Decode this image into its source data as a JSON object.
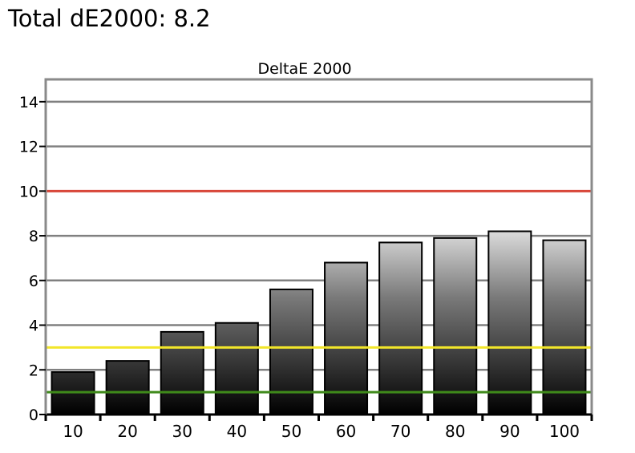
{
  "heading": "Total dE2000: 8.2",
  "chart_data": {
    "type": "bar",
    "title": "DeltaE 2000",
    "xlabel": "",
    "ylabel": "",
    "categories": [
      "10",
      "20",
      "30",
      "40",
      "50",
      "60",
      "70",
      "80",
      "90",
      "100"
    ],
    "values": [
      1.9,
      2.4,
      3.7,
      4.1,
      5.6,
      6.8,
      7.7,
      7.9,
      8.2,
      7.8
    ],
    "ylim": [
      0,
      15
    ],
    "yticks": [
      0,
      2,
      4,
      6,
      8,
      10,
      12,
      14
    ],
    "grid": true,
    "reference_lines": [
      {
        "value": 10,
        "color": "#d9473a"
      },
      {
        "value": 3,
        "color": "#f2e62a"
      },
      {
        "value": 1,
        "color": "#3f8a1a"
      }
    ],
    "colors": {
      "gridline": "#808080",
      "frame": "#8a8a8a",
      "bar_outline": "#000000",
      "bar_bottom": "#000000",
      "bar_top": "#ffffff"
    }
  }
}
